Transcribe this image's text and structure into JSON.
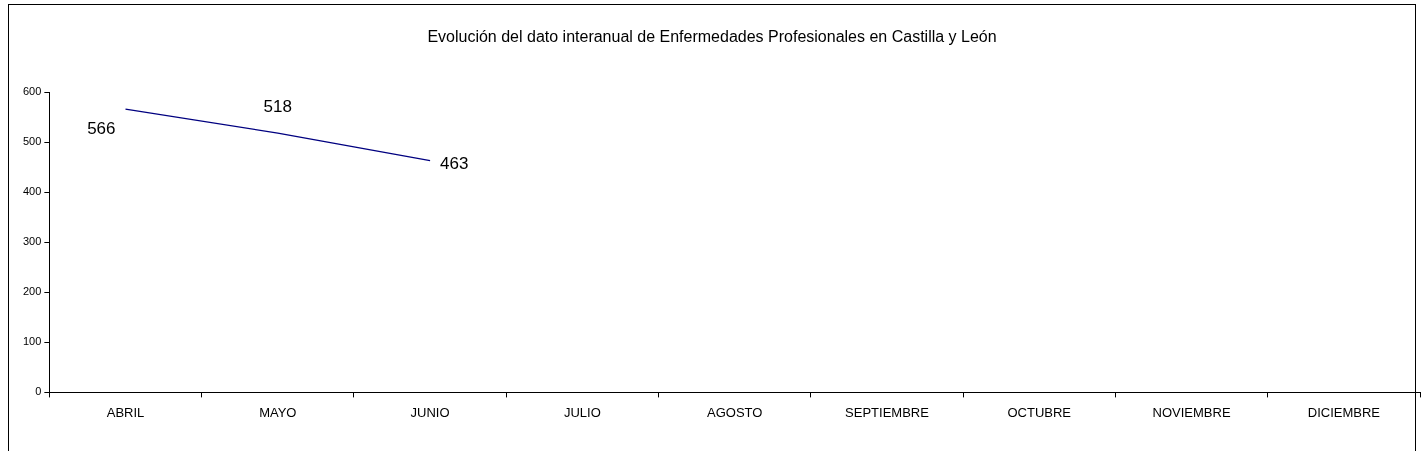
{
  "chart_data": {
    "type": "line",
    "title": "Evolución del dato interanual de Enfermedades Profesionales en Castilla y León",
    "categories": [
      "ABRIL",
      "MAYO",
      "JUNIO",
      "JULIO",
      "AGOSTO",
      "SEPTIEMBRE",
      "OCTUBRE",
      "NOVIEMBRE",
      "DICIEMBRE"
    ],
    "series": [
      {
        "color": "#000080",
        "values": [
          566,
          518,
          463,
          null,
          null,
          null,
          null,
          null,
          null
        ]
      }
    ],
    "ylim": [
      0,
      600
    ],
    "yticks": [
      0,
      100,
      200,
      300,
      400,
      500,
      600
    ],
    "grid": false,
    "legend": false,
    "marker": "none",
    "line_style": "solid",
    "data_labels": true
  }
}
